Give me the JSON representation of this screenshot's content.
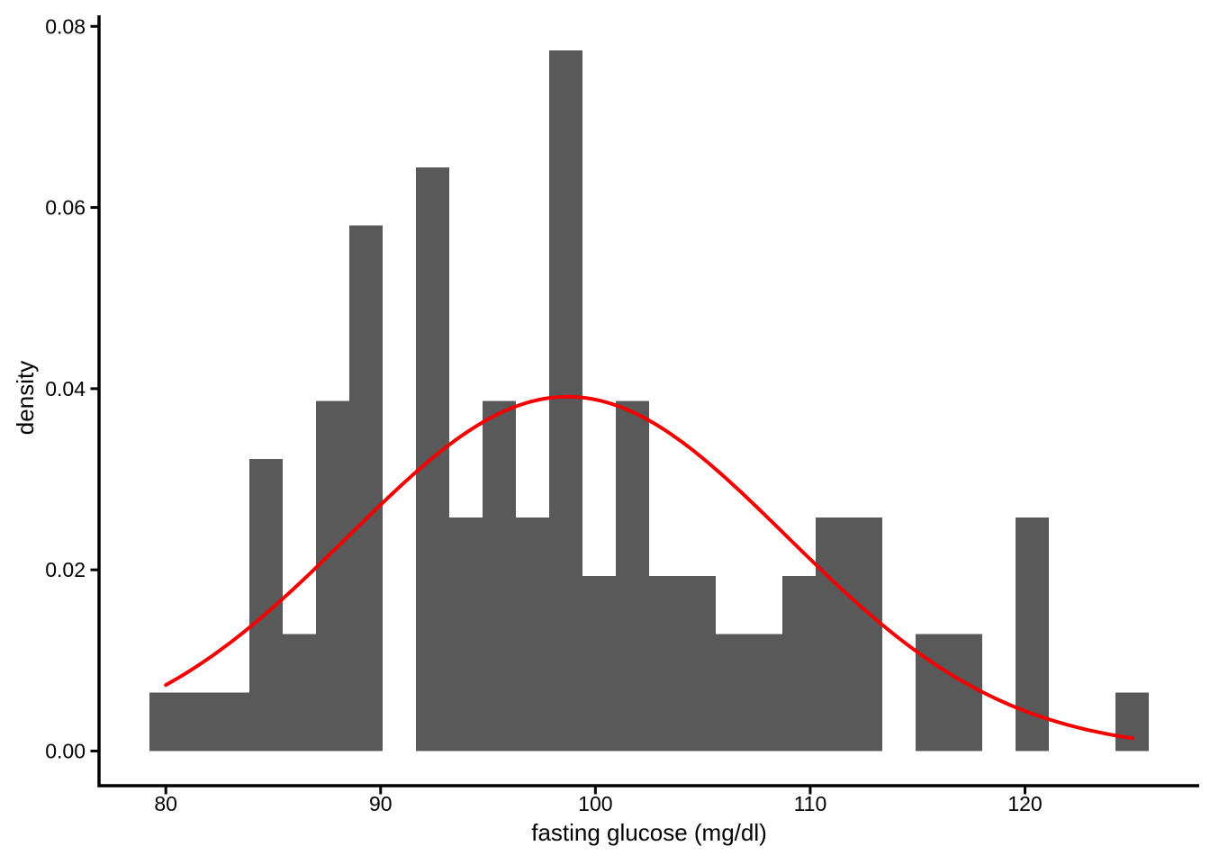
{
  "figure": {
    "background": "#ffffff"
  },
  "chart_data": {
    "type": "histogram",
    "subtype": "histogram_with_normal_density_curve",
    "title": "",
    "xlabel": "fasting glucose (mg/dl)",
    "ylabel": "density",
    "x_ticks": [
      80,
      90,
      100,
      110,
      120
    ],
    "y_ticks": [
      0,
      0.02,
      0.04,
      0.06,
      0.08
    ],
    "y_tick_labels": [
      "0.00",
      "0.02",
      "0.04",
      "0.06",
      "0.08"
    ],
    "x_range": [
      76.89,
      128.11
    ],
    "y_range": [
      -0.00383,
      0.08122
    ],
    "grid": false,
    "legend": false,
    "n_observations": 100,
    "bin_width": 1.5517,
    "bins": [
      {
        "center": 80.0,
        "count": 1
      },
      {
        "center": 81.55,
        "count": 1
      },
      {
        "center": 83.1,
        "count": 1
      },
      {
        "center": 84.66,
        "count": 5
      },
      {
        "center": 86.21,
        "count": 2
      },
      {
        "center": 87.76,
        "count": 6
      },
      {
        "center": 89.31,
        "count": 9
      },
      {
        "center": 90.86,
        "count": 0
      },
      {
        "center": 92.41,
        "count": 10
      },
      {
        "center": 93.97,
        "count": 4
      },
      {
        "center": 95.52,
        "count": 6
      },
      {
        "center": 97.07,
        "count": 4
      },
      {
        "center": 98.62,
        "count": 12
      },
      {
        "center": 100.17,
        "count": 3
      },
      {
        "center": 101.72,
        "count": 6
      },
      {
        "center": 103.28,
        "count": 3
      },
      {
        "center": 104.83,
        "count": 3
      },
      {
        "center": 106.38,
        "count": 2
      },
      {
        "center": 107.93,
        "count": 2
      },
      {
        "center": 109.48,
        "count": 3
      },
      {
        "center": 111.03,
        "count": 4
      },
      {
        "center": 112.59,
        "count": 4
      },
      {
        "center": 114.14,
        "count": 0
      },
      {
        "center": 115.69,
        "count": 2
      },
      {
        "center": 117.24,
        "count": 2
      },
      {
        "center": 118.79,
        "count": 0
      },
      {
        "center": 120.34,
        "count": 4
      },
      {
        "center": 121.9,
        "count": 0
      },
      {
        "center": 123.45,
        "count": 0
      },
      {
        "center": 125.0,
        "count": 1
      }
    ],
    "max_bar_density": 0.0773,
    "normal_curve": {
      "mean": 98.7,
      "sd": 10.2,
      "x_from": 80,
      "x_to": 125,
      "peak_density": 0.0391
    },
    "colors": {
      "bar_fill": "#595959",
      "curve_stroke": "#f40000",
      "axis_stroke": "#000000",
      "text": "#000000",
      "background": "#ffffff"
    }
  }
}
